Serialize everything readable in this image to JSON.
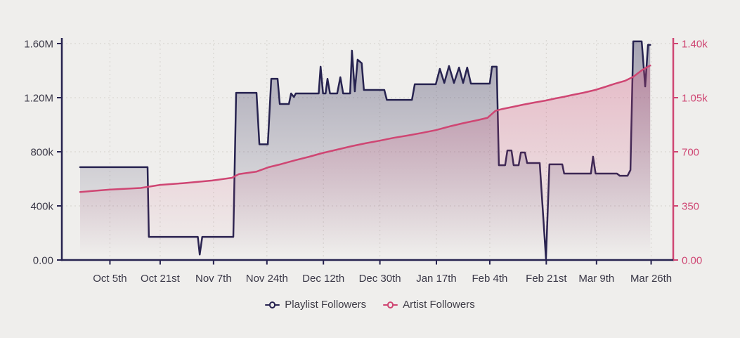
{
  "app": {
    "background": "#efeeec",
    "grid_color": "#d9d7d3",
    "label_color": "#3a3847"
  },
  "chart_data": {
    "type": "line",
    "title": "",
    "grid": true,
    "legend_position": "bottom",
    "x_axis": {
      "unit": "date",
      "range_days": [
        0,
        182
      ],
      "ticks": [
        {
          "label": "Oct 5th",
          "day": 9.5
        },
        {
          "label": "Oct 21st",
          "day": 25.5
        },
        {
          "label": "Nov 7th",
          "day": 42.5
        },
        {
          "label": "Nov 24th",
          "day": 59.5
        },
        {
          "label": "Dec 12th",
          "day": 77.5
        },
        {
          "label": "Dec 30th",
          "day": 95.5
        },
        {
          "label": "Jan 17th",
          "day": 113.5
        },
        {
          "label": "Feb 4th",
          "day": 130.5
        },
        {
          "label": "Feb 21st",
          "day": 148.5
        },
        {
          "label": "Mar 9th",
          "day": 164.5
        },
        {
          "label": "Mar 26th",
          "day": 181.9
        }
      ]
    },
    "y_axis_left": {
      "title": "Playlist Followers",
      "max": 1600000,
      "color": "#272350",
      "ticks": [
        {
          "label": "0.00",
          "value": 0
        },
        {
          "label": "400k",
          "value": 400000
        },
        {
          "label": "800k",
          "value": 800000
        },
        {
          "label": "1.20M",
          "value": 1200000
        },
        {
          "label": "1.60M",
          "value": 1600000
        }
      ]
    },
    "y_axis_right": {
      "title": "Artist Followers",
      "max": 1400,
      "color": "#cf4673",
      "ticks": [
        {
          "label": "0.00",
          "value": 0
        },
        {
          "label": "350",
          "value": 350
        },
        {
          "label": "700",
          "value": 700
        },
        {
          "label": "1.05k",
          "value": 1050
        },
        {
          "label": "1.40k",
          "value": 1400
        }
      ]
    },
    "series": [
      {
        "name": "Playlist Followers",
        "type": "line",
        "axis": "left",
        "color": "#272350",
        "area": true,
        "points": [
          [
            0,
            686000
          ],
          [
            21.5,
            686000
          ],
          [
            21.9,
            171000
          ],
          [
            37.5,
            171000
          ],
          [
            38.1,
            40000
          ],
          [
            38.9,
            171000
          ],
          [
            48.8,
            171000
          ],
          [
            49.7,
            1236000
          ],
          [
            56.2,
            1236000
          ],
          [
            57.1,
            855000
          ],
          [
            59.8,
            855000
          ],
          [
            60.9,
            1340000
          ],
          [
            62.9,
            1340000
          ],
          [
            63.6,
            1153000
          ],
          [
            66.5,
            1153000
          ],
          [
            67.2,
            1231000
          ],
          [
            68.1,
            1205000
          ],
          [
            68.7,
            1231000
          ],
          [
            76,
            1231000
          ],
          [
            76.6,
            1429000
          ],
          [
            77.4,
            1231000
          ],
          [
            78.2,
            1231000
          ],
          [
            78.8,
            1340000
          ],
          [
            79.6,
            1231000
          ],
          [
            81.9,
            1231000
          ],
          [
            82.9,
            1351000
          ],
          [
            83.8,
            1231000
          ],
          [
            86,
            1231000
          ],
          [
            86.6,
            1548000
          ],
          [
            87.5,
            1247000
          ],
          [
            88.4,
            1481000
          ],
          [
            89.7,
            1455000
          ],
          [
            90.4,
            1257000
          ],
          [
            96.9,
            1257000
          ],
          [
            97.7,
            1184000
          ],
          [
            105.7,
            1184000
          ],
          [
            106.6,
            1299000
          ],
          [
            113.3,
            1299000
          ],
          [
            114.6,
            1413000
          ],
          [
            116,
            1309000
          ],
          [
            117.5,
            1434000
          ],
          [
            119.1,
            1309000
          ],
          [
            120.7,
            1423000
          ],
          [
            122,
            1309000
          ],
          [
            123.3,
            1423000
          ],
          [
            124.5,
            1304000
          ],
          [
            130.5,
            1304000
          ],
          [
            131.2,
            1429000
          ],
          [
            132.7,
            1429000
          ],
          [
            133.4,
            701000
          ],
          [
            135.4,
            701000
          ],
          [
            136.1,
            810000
          ],
          [
            137.4,
            810000
          ],
          [
            138.1,
            701000
          ],
          [
            139.7,
            701000
          ],
          [
            140.4,
            795000
          ],
          [
            141.7,
            795000
          ],
          [
            142.4,
            717000
          ],
          [
            146.4,
            717000
          ],
          [
            148.4,
            10000
          ],
          [
            149.5,
            707000
          ],
          [
            153.6,
            707000
          ],
          [
            154.2,
            639000
          ],
          [
            162.7,
            639000
          ],
          [
            163.4,
            764000
          ],
          [
            164.2,
            639000
          ],
          [
            171,
            639000
          ],
          [
            171.9,
            623000
          ],
          [
            174.4,
            623000
          ],
          [
            175.3,
            665000
          ],
          [
            176.2,
            1616000
          ],
          [
            178.9,
            1616000
          ],
          [
            180,
            1283000
          ],
          [
            180.9,
            1590000
          ],
          [
            181.6,
            1590000
          ]
        ]
      },
      {
        "name": "Artist Followers",
        "type": "line",
        "axis": "right",
        "color": "#cf4673",
        "area": true,
        "points": [
          [
            0,
            440
          ],
          [
            9.2,
            455
          ],
          [
            19.3,
            466
          ],
          [
            25.5,
            486
          ],
          [
            32.7,
            497
          ],
          [
            42.1,
            514
          ],
          [
            48.4,
            532
          ],
          [
            50.6,
            556
          ],
          [
            56.2,
            572
          ],
          [
            60,
            600
          ],
          [
            64,
            620
          ],
          [
            68.5,
            645
          ],
          [
            73,
            668
          ],
          [
            77,
            691
          ],
          [
            81.9,
            714
          ],
          [
            86.4,
            736
          ],
          [
            90.9,
            755
          ],
          [
            95.4,
            772
          ],
          [
            99.8,
            790
          ],
          [
            104.3,
            805
          ],
          [
            108.8,
            822
          ],
          [
            113.3,
            840
          ],
          [
            117.7,
            864
          ],
          [
            122.2,
            886
          ],
          [
            126.7,
            905
          ],
          [
            129.8,
            920
          ],
          [
            132.3,
            965
          ],
          [
            134.5,
            977
          ],
          [
            137.9,
            991
          ],
          [
            141.2,
            1005
          ],
          [
            144.6,
            1018
          ],
          [
            148.4,
            1032
          ],
          [
            151.3,
            1045
          ],
          [
            154,
            1055
          ],
          [
            156.9,
            1068
          ],
          [
            160.3,
            1082
          ],
          [
            164.1,
            1100
          ],
          [
            167,
            1118
          ],
          [
            170.3,
            1140
          ],
          [
            173.7,
            1160
          ],
          [
            176.2,
            1185
          ],
          [
            178.9,
            1227
          ],
          [
            180.7,
            1248
          ],
          [
            181.6,
            1258
          ]
        ]
      }
    ],
    "legend": [
      "Playlist Followers",
      "Artist Followers"
    ]
  }
}
